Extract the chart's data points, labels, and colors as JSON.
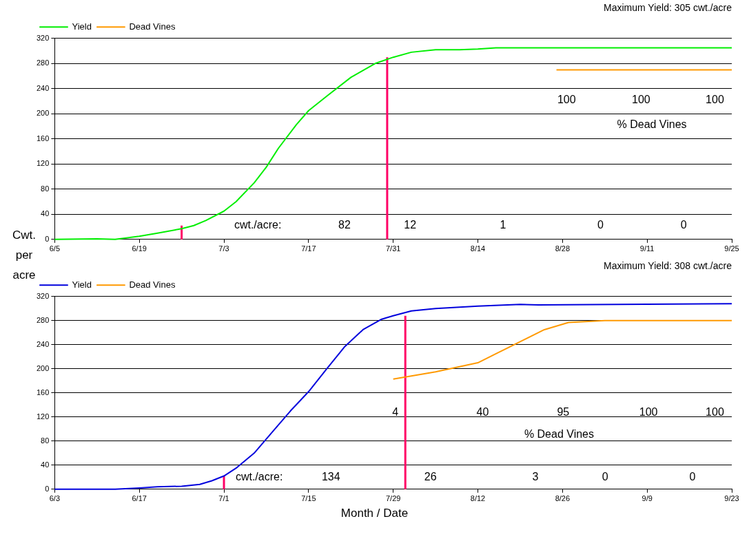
{
  "chart_data": [
    {
      "type": "line",
      "title": "Maximum Yield: 305 cwt./acre",
      "ylabel": "Cwt. per acre",
      "legend": "top left",
      "grid": "y",
      "marker": "none",
      "xlim": [
        "--06-05",
        "--09-25"
      ],
      "xticks": [
        {
          "value": "--06-05",
          "label": "6/5"
        },
        {
          "value": "--06-19",
          "label": "6/19"
        },
        {
          "value": "--07-03",
          "label": "7/3"
        },
        {
          "value": "--07-17",
          "label": "7/17"
        },
        {
          "value": "--07-31",
          "label": "7/31"
        },
        {
          "value": "--08-14",
          "label": "8/14"
        },
        {
          "value": "--08-28",
          "label": "8/28"
        },
        {
          "value": "--09-11",
          "label": "9/11"
        },
        {
          "value": "--09-25",
          "label": "9/25"
        }
      ],
      "ylim": [
        0,
        320
      ],
      "yticks": [
        0,
        40,
        80,
        120,
        160,
        200,
        240,
        280,
        320
      ],
      "series": [
        {
          "name": "Yield",
          "color": "#00ee00",
          "x": [
            "--06-05",
            "--06-12",
            "--06-15",
            "--06-19",
            "--06-22",
            "--06-26",
            "--06-28",
            "--06-30",
            "--07-03",
            "--07-05",
            "--07-08",
            "--07-10",
            "--07-12",
            "--07-15",
            "--07-17",
            "--07-20",
            "--07-24",
            "--07-28",
            "--07-31",
            "--08-03",
            "--08-07",
            "--08-11",
            "--08-14",
            "--08-17",
            "--09-25"
          ],
          "values": [
            0,
            1,
            0,
            5,
            10,
            17,
            22,
            30,
            45,
            60,
            90,
            115,
            145,
            183,
            205,
            228,
            258,
            280,
            290,
            298,
            302,
            302,
            303,
            305,
            305
          ]
        },
        {
          "name": "Dead Vines",
          "color": "#ff9900",
          "x": [
            "--08-27",
            "--09-25"
          ],
          "values": [
            270,
            270
          ]
        },
        {
          "color": "#ff0066",
          "x": [
            "--06-26",
            "--06-26"
          ],
          "values": [
            0,
            22
          ]
        },
        {
          "color": "#ff0066",
          "x": [
            "--07-30",
            "--07-30"
          ],
          "values": [
            0,
            290
          ]
        }
      ],
      "annotations": [
        "cwt./acre:",
        "82",
        "12",
        "1",
        "0",
        "0",
        "100",
        "100",
        "100",
        "% Dead Vines"
      ]
    },
    {
      "type": "line",
      "title": "Maximum Yield: 308 cwt./acre",
      "xlabel": "Month / Date",
      "legend": "top left",
      "grid": "y",
      "marker": "none",
      "xlim": [
        "--06-03",
        "--09-23"
      ],
      "xticks": [
        {
          "value": "--06-03",
          "label": "6/3"
        },
        {
          "value": "--06-17",
          "label": "6/17"
        },
        {
          "value": "--07-01",
          "label": "7/1"
        },
        {
          "value": "--07-15",
          "label": "7/15"
        },
        {
          "value": "--07-29",
          "label": "7/29"
        },
        {
          "value": "--08-12",
          "label": "8/12"
        },
        {
          "value": "--08-26",
          "label": "8/26"
        },
        {
          "value": "--09-09",
          "label": "9/9"
        },
        {
          "value": "--09-23",
          "label": "9/23"
        }
      ],
      "ylim": [
        0,
        320
      ],
      "yticks": [
        0,
        40,
        80,
        120,
        160,
        200,
        240,
        280,
        320
      ],
      "series": [
        {
          "name": "Yield",
          "color": "#0000dd",
          "x": [
            "--06-03",
            "--06-13",
            "--06-17",
            "--06-20",
            "--06-24",
            "--06-27",
            "--06-29",
            "--07-01",
            "--07-03",
            "--07-06",
            "--07-09",
            "--07-12",
            "--07-15",
            "--07-18",
            "--07-21",
            "--07-24",
            "--07-27",
            "--07-29",
            "--08-01",
            "--08-05",
            "--08-12",
            "--08-19",
            "--08-22",
            "--09-23"
          ],
          "values": [
            0,
            0,
            2,
            4,
            5,
            8,
            14,
            22,
            35,
            60,
            95,
            130,
            162,
            200,
            237,
            265,
            282,
            288,
            296,
            300,
            304,
            307,
            306,
            308
          ]
        },
        {
          "name": "Dead Vines",
          "color": "#ff9900",
          "x": [
            "--07-29",
            "--08-05",
            "--08-12",
            "--08-15",
            "--08-19",
            "--08-23",
            "--08-27",
            "--09-02",
            "--09-23"
          ],
          "values": [
            183,
            195,
            210,
            225,
            245,
            265,
            277,
            280,
            280
          ]
        },
        {
          "color": "#ff0066",
          "x": [
            "--07-01",
            "--07-01"
          ],
          "values": [
            0,
            22
          ]
        },
        {
          "color": "#ff0066",
          "x": [
            "--07-31",
            "--07-31"
          ],
          "values": [
            0,
            288
          ]
        }
      ],
      "annotations": [
        "cwt./acre:",
        "134",
        "26",
        "3",
        "0",
        "0",
        "4",
        "40",
        "95",
        "100",
        "100",
        "% Dead Vines"
      ]
    }
  ]
}
